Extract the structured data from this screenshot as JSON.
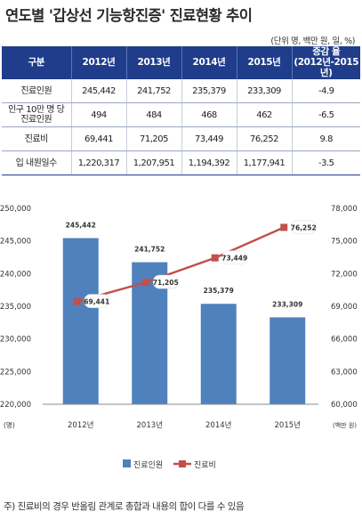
{
  "title": "연도별 '갑상선 기능항진증' 진료현황 추이",
  "unit_note": "(단위 명, 백만 원, 일, %)",
  "table": {
    "headers": [
      "구분",
      "2012년",
      "2013년",
      "2014년",
      "2015년",
      "증감 율\n(2012년-2015년)"
    ],
    "rows": [
      {
        "label": "진료인원",
        "values": [
          "245,442",
          "241,752",
          "235,379",
          "233,309",
          "-4.9"
        ]
      },
      {
        "label": "인구 10만 명 당\n진료인원",
        "values": [
          "494",
          "484",
          "468",
          "462",
          "-6.5"
        ]
      },
      {
        "label": "진료비",
        "values": [
          "69,441",
          "71,205",
          "73,449",
          "76,252",
          "9.8"
        ]
      },
      {
        "label": "입 내원일수",
        "values": [
          "1,220,317",
          "1,207,951",
          "1,194,392",
          "1,177,941",
          "-3.5"
        ]
      }
    ]
  },
  "chart_data": {
    "type": "bar",
    "categories": [
      "2012년",
      "2013년",
      "2014년",
      "2015년"
    ],
    "series": [
      {
        "name": "진료인원",
        "type": "bar",
        "axis": "left",
        "values": [
          245442,
          241752,
          235379,
          233309
        ],
        "labels": [
          "245,442",
          "241,752",
          "235,379",
          "233,309"
        ],
        "color": "#4f81bd"
      },
      {
        "name": "진료비",
        "type": "line",
        "axis": "right",
        "values": [
          69441,
          71205,
          73449,
          76252
        ],
        "labels": [
          "69,441",
          "71,205",
          "73,449",
          "76,252"
        ],
        "color": "#c0504d"
      }
    ],
    "y_left": {
      "min": 220000,
      "max": 250000,
      "step": 5000,
      "unit": "(명)",
      "ticks": [
        "220,000",
        "225,000",
        "230,000",
        "235,000",
        "240,000",
        "245,000",
        "250,000"
      ]
    },
    "y_right": {
      "min": 60000,
      "max": 78000,
      "step": 3000,
      "unit": "(백만 원)",
      "ticks": [
        "60,000",
        "63,000",
        "66,000",
        "69,000",
        "72,000",
        "75,000",
        "78,000"
      ]
    },
    "legend_position": "bottom",
    "grid": false
  },
  "footnote": "주) 진료비의 경우 반올림 관계로 총합과 내용의 합이 다를 수 있음"
}
